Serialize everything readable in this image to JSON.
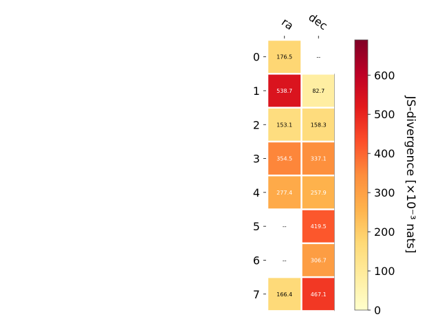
{
  "chart_data": {
    "type": "heatmap",
    "title": "",
    "columns": [
      "ra",
      "dec"
    ],
    "rows": [
      "0",
      "1",
      "2",
      "3",
      "4",
      "5",
      "6",
      "7"
    ],
    "values": [
      [
        176.5,
        null
      ],
      [
        538.7,
        82.7
      ],
      [
        153.1,
        158.3
      ],
      [
        354.5,
        337.1
      ],
      [
        277.4,
        257.9
      ],
      [
        null,
        419.5
      ],
      [
        null,
        306.7
      ],
      [
        166.4,
        467.1
      ]
    ],
    "cell_labels": [
      [
        "176.5",
        "--"
      ],
      [
        "538.7",
        "82.7"
      ],
      [
        "153.1",
        "158.3"
      ],
      [
        "354.5",
        "337.1"
      ],
      [
        "277.4",
        "257.9"
      ],
      [
        "--",
        "419.5"
      ],
      [
        "--",
        "306.7"
      ],
      [
        "166.4",
        "467.1"
      ]
    ],
    "colorbar": {
      "label": "JS-divergence [×10⁻³ nats]",
      "range": [
        0,
        690
      ],
      "ticks": [
        0,
        100,
        200,
        300,
        400,
        500,
        600
      ],
      "tick_labels": [
        "0",
        "100",
        "200",
        "300",
        "400",
        "500",
        "600"
      ],
      "colormap": "YlOrRd"
    }
  }
}
